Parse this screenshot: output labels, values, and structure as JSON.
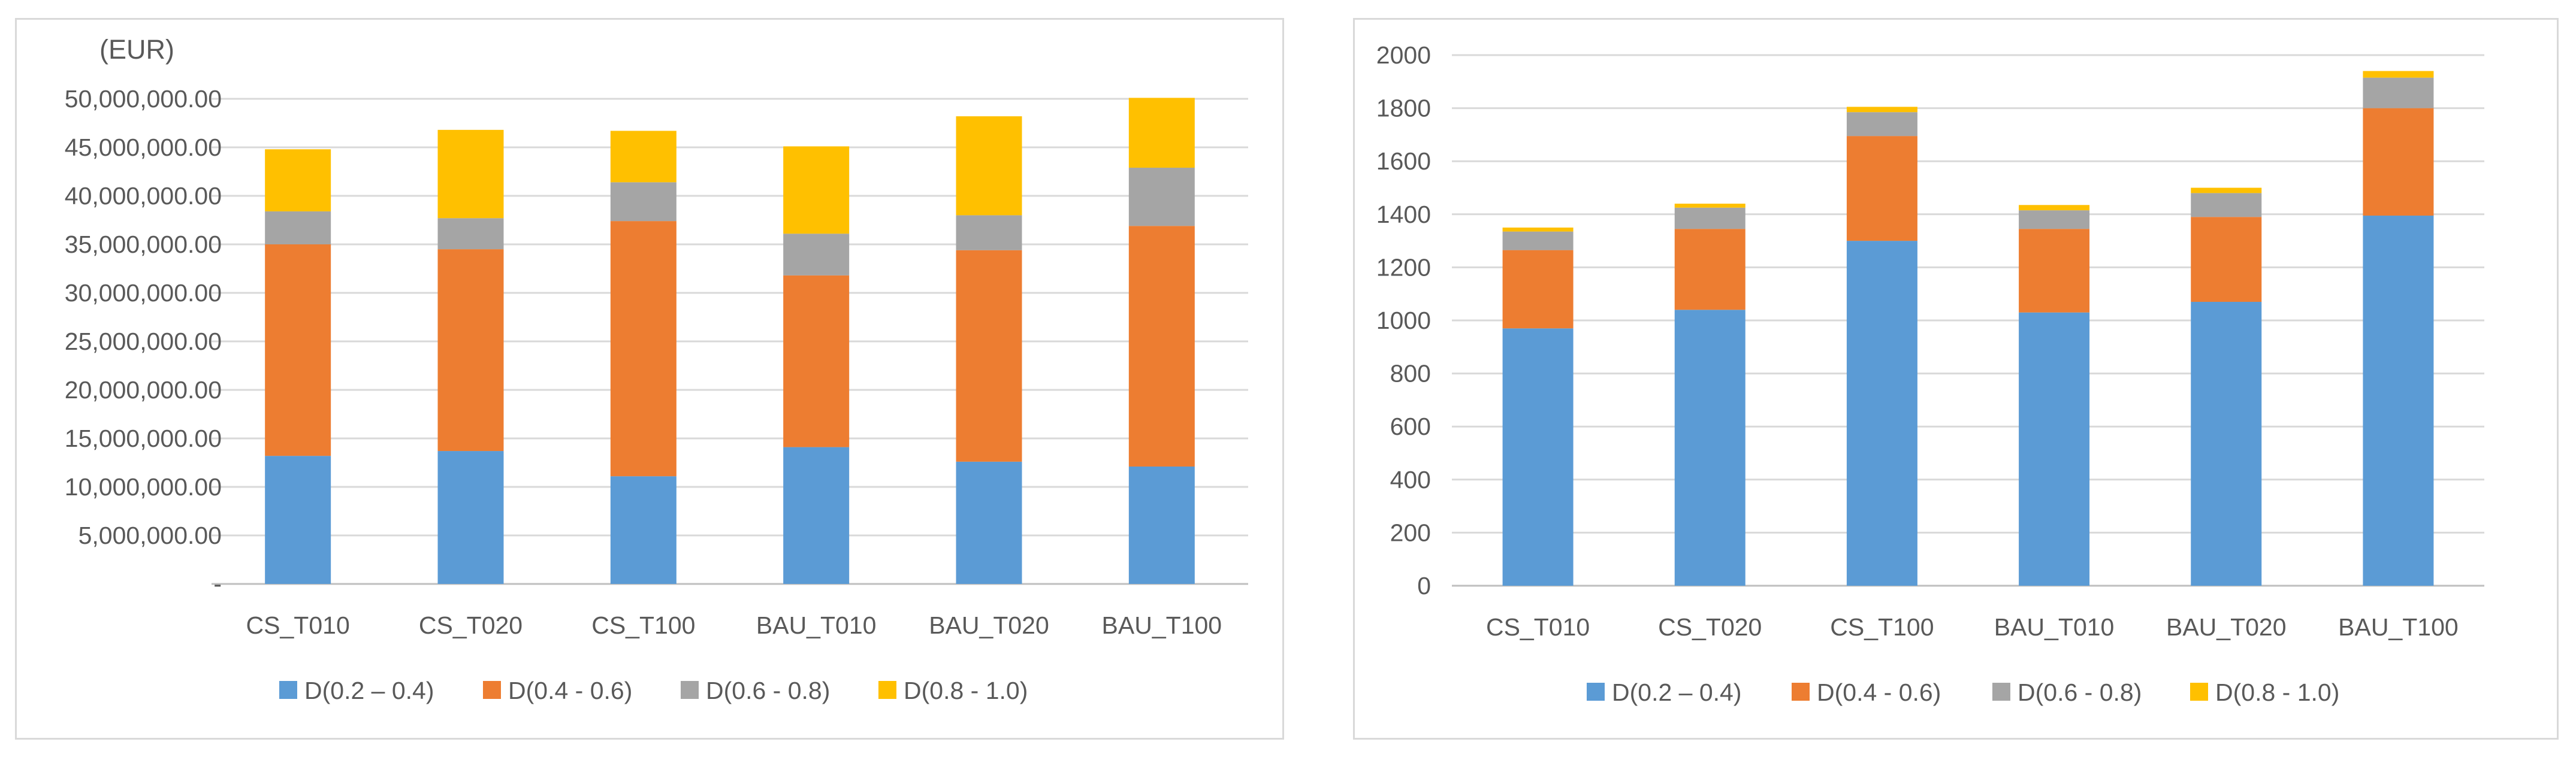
{
  "chart_data": [
    {
      "type": "bar",
      "stacked": true,
      "unit_label": "(EUR)",
      "categories": [
        "CS_T010",
        "CS_T020",
        "CS_T100",
        "BAU_T010",
        "BAU_T020",
        "BAU_T100"
      ],
      "series": [
        {
          "name": "D(0.2 – 0.4)",
          "color": "#5b9bd5",
          "values": [
            13200000,
            13700000,
            11100000,
            14100000,
            12600000,
            12100000
          ]
        },
        {
          "name": "D(0.4 - 0.6)",
          "color": "#ed7d31",
          "values": [
            21800000,
            20800000,
            26300000,
            17700000,
            21800000,
            24800000
          ]
        },
        {
          "name": "D(0.6 - 0.8)",
          "color": "#a5a5a5",
          "values": [
            3400000,
            3200000,
            4000000,
            4300000,
            3600000,
            6000000
          ]
        },
        {
          "name": "D(0.8 - 1.0)",
          "color": "#ffc000",
          "values": [
            6400000,
            9100000,
            5300000,
            9000000,
            10200000,
            7200000
          ]
        }
      ],
      "yticks": [
        "-",
        "5,000,000.00",
        "10,000,000.00",
        "15,000,000.00",
        "20,000,000.00",
        "25,000,000.00",
        "30,000,000.00",
        "35,000,000.00",
        "40,000,000.00",
        "45,000,000.00",
        "50,000,000.00"
      ],
      "ylim": [
        0,
        50000000
      ],
      "grid": true,
      "legend": "bottom"
    },
    {
      "type": "bar",
      "stacked": true,
      "categories": [
        "CS_T010",
        "CS_T020",
        "CS_T100",
        "BAU_T010",
        "BAU_T020",
        "BAU_T100"
      ],
      "series": [
        {
          "name": "D(0.2 – 0.4)",
          "color": "#5b9bd5",
          "values": [
            970,
            1040,
            1300,
            1030,
            1070,
            1395
          ]
        },
        {
          "name": "D(0.4 - 0.6)",
          "color": "#ed7d31",
          "values": [
            295,
            305,
            395,
            315,
            320,
            405
          ]
        },
        {
          "name": "D(0.6 - 0.8)",
          "color": "#a5a5a5",
          "values": [
            70,
            80,
            90,
            70,
            90,
            115
          ]
        },
        {
          "name": "D(0.8 - 1.0)",
          "color": "#ffc000",
          "values": [
            15,
            15,
            20,
            20,
            20,
            25
          ]
        }
      ],
      "yticks": [
        "0",
        "200",
        "400",
        "600",
        "800",
        "1000",
        "1200",
        "1400",
        "1600",
        "1800",
        "2000"
      ],
      "ylim": [
        0,
        2000
      ],
      "grid": true,
      "legend": "bottom"
    }
  ]
}
